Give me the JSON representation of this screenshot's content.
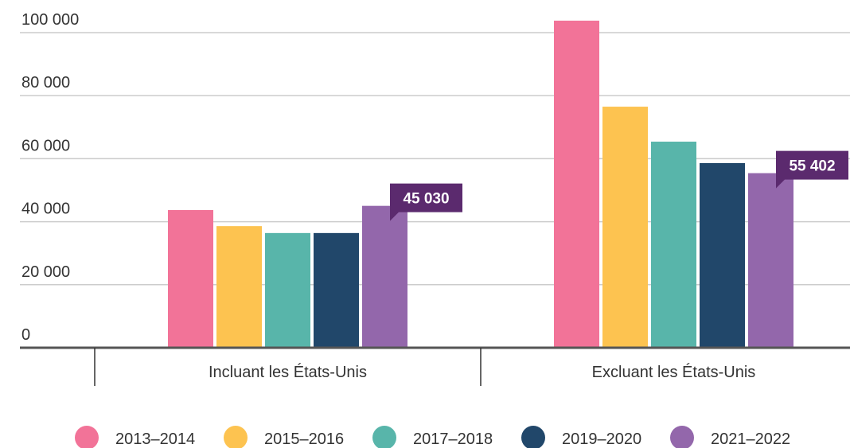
{
  "chart_data": {
    "type": "bar",
    "categories": [
      "Incluant les États-Unis",
      "Excluant les États-Unis"
    ],
    "series": [
      {
        "name": "2013–2014",
        "color": "#f27398",
        "values": [
          43700,
          103800
        ]
      },
      {
        "name": "2015–2016",
        "color": "#fdc350",
        "values": [
          38600,
          76500
        ]
      },
      {
        "name": "2017–2018",
        "color": "#58b5aa",
        "values": [
          36400,
          65400
        ]
      },
      {
        "name": "2019–2020",
        "color": "#21476a",
        "values": [
          36400,
          58600
        ]
      },
      {
        "name": "2021–2022",
        "color": "#9367ab",
        "values": [
          45030,
          55402
        ],
        "value_labels": [
          "45 030",
          "55 402"
        ]
      }
    ],
    "ylim": [
      0,
      100000
    ],
    "yticks": [
      0,
      {
        "value": 20000,
        "label": "20 000"
      },
      {
        "value": 40000,
        "label": "40 000"
      },
      {
        "value": 60000,
        "label": "60 000"
      },
      {
        "value": 80000,
        "label": "80 000"
      },
      {
        "value": 100000,
        "label": "100 000"
      }
    ],
    "grid": true,
    "legend": "bottom"
  }
}
